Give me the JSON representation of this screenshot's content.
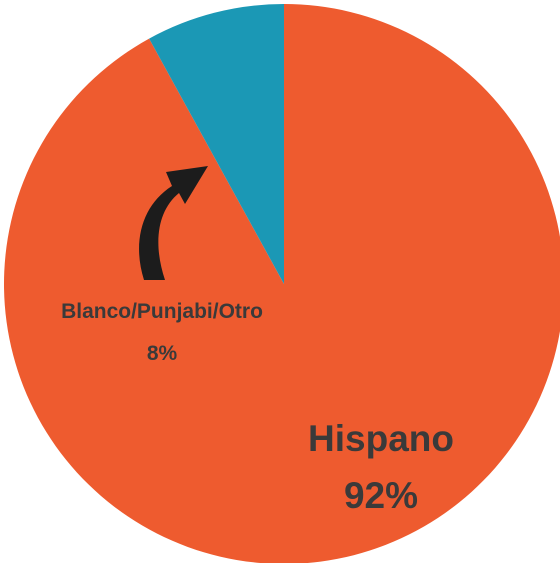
{
  "chart_data": {
    "type": "pie",
    "title": "",
    "slices": [
      {
        "label": "Hispano",
        "value": 92,
        "value_label": "92%",
        "color": "#ee5b2f"
      },
      {
        "label": "Blanco/Punjabi/Otro",
        "value": 8,
        "value_label": "8%",
        "color": "#1b98b5"
      }
    ],
    "start_angle_deg": 0,
    "direction": "clockwise",
    "legend": "none",
    "annotation": {
      "type": "curved-arrow",
      "color": "#1c1c1c",
      "points_to": "Blanco/Punjabi/Otro"
    }
  }
}
